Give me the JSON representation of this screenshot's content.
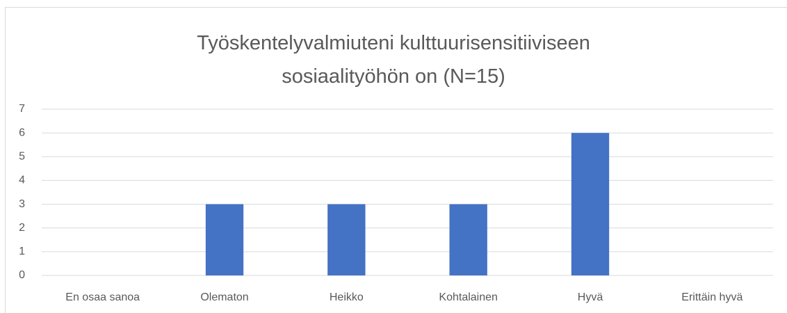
{
  "chart_data": {
    "type": "bar",
    "title": "Työskentelyvalmiuteni kulttuurisensitiiviseen sosiaalityöhön on (N=15)",
    "categories": [
      "En osaa sanoa",
      "Olematon",
      "Heikko",
      "Kohtalainen",
      "Hyvä",
      "Erittäin hyvä"
    ],
    "values": [
      0,
      3,
      3,
      3,
      6,
      0
    ],
    "color": "#4472c4",
    "ylim": [
      0,
      7
    ],
    "yticks": [
      0,
      1,
      2,
      3,
      4,
      5,
      6,
      7
    ],
    "grid": true
  }
}
